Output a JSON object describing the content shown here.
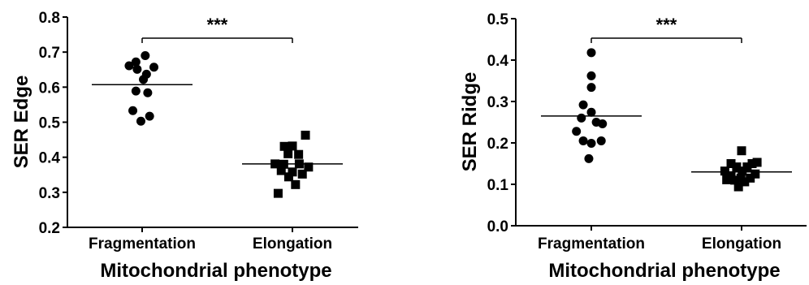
{
  "chart_data": [
    {
      "type": "scatter",
      "ylabel": "SER Edge",
      "xlabel": "Mitochondrial phenotype",
      "ylim": [
        0.2,
        0.8
      ],
      "yticks": [
        "0.2",
        "0.3",
        "0.4",
        "0.5",
        "0.6",
        "0.7",
        "0.8"
      ],
      "categories": [
        "Fragmentation",
        "Elongation"
      ],
      "significance": "***",
      "grid": false,
      "series": [
        {
          "category": "Fragmentation",
          "marker": "circle",
          "mean": 0.607,
          "points": [
            {
              "x": -0.21,
              "y": 0.661
            },
            {
              "x": -0.1,
              "y": 0.672
            },
            {
              "x": 0.05,
              "y": 0.69
            },
            {
              "x": -0.08,
              "y": 0.651
            },
            {
              "x": 0.19,
              "y": 0.657
            },
            {
              "x": 0.02,
              "y": 0.622
            },
            {
              "x": 0.07,
              "y": 0.637
            },
            {
              "x": -0.1,
              "y": 0.589
            },
            {
              "x": 0.09,
              "y": 0.584
            },
            {
              "x": -0.15,
              "y": 0.533
            },
            {
              "x": 0.12,
              "y": 0.517
            },
            {
              "x": -0.02,
              "y": 0.503
            }
          ]
        },
        {
          "category": "Elongation",
          "marker": "square",
          "mean": 0.381,
          "points": [
            {
              "x": 0.21,
              "y": 0.463
            },
            {
              "x": -0.13,
              "y": 0.431
            },
            {
              "x": 0.0,
              "y": 0.432
            },
            {
              "x": -0.07,
              "y": 0.41
            },
            {
              "x": 0.1,
              "y": 0.408
            },
            {
              "x": -0.28,
              "y": 0.381
            },
            {
              "x": -0.14,
              "y": 0.38
            },
            {
              "x": 0.11,
              "y": 0.381
            },
            {
              "x": 0.26,
              "y": 0.372
            },
            {
              "x": -0.18,
              "y": 0.362
            },
            {
              "x": 0.0,
              "y": 0.358
            },
            {
              "x": 0.16,
              "y": 0.352
            },
            {
              "x": -0.06,
              "y": 0.344
            },
            {
              "x": 0.05,
              "y": 0.322
            },
            {
              "x": -0.23,
              "y": 0.297
            }
          ]
        }
      ]
    },
    {
      "type": "scatter",
      "ylabel": "SER Ridge",
      "xlabel": "Mitochondrial phenotype",
      "ylim": [
        0.0,
        0.5
      ],
      "yticks": [
        "0.0",
        "0.1",
        "0.2",
        "0.3",
        "0.4",
        "0.5"
      ],
      "categories": [
        "Fragmentation",
        "Elongation"
      ],
      "significance": "***",
      "grid": false,
      "series": [
        {
          "category": "Fragmentation",
          "marker": "circle",
          "mean": 0.265,
          "points": [
            {
              "x": 0.0,
              "y": 0.418
            },
            {
              "x": 0.0,
              "y": 0.362
            },
            {
              "x": 0.0,
              "y": 0.334
            },
            {
              "x": -0.13,
              "y": 0.292
            },
            {
              "x": 0.0,
              "y": 0.274
            },
            {
              "x": -0.16,
              "y": 0.26
            },
            {
              "x": 0.18,
              "y": 0.246
            },
            {
              "x": 0.08,
              "y": 0.25
            },
            {
              "x": -0.24,
              "y": 0.228
            },
            {
              "x": -0.13,
              "y": 0.205
            },
            {
              "x": 0.16,
              "y": 0.205
            },
            {
              "x": 0.0,
              "y": 0.199
            },
            {
              "x": -0.04,
              "y": 0.162
            }
          ]
        },
        {
          "category": "Elongation",
          "marker": "square",
          "mean": 0.13,
          "points": [
            {
              "x": 0.0,
              "y": 0.181
            },
            {
              "x": -0.17,
              "y": 0.15
            },
            {
              "x": 0.17,
              "y": 0.15
            },
            {
              "x": 0.25,
              "y": 0.153
            },
            {
              "x": -0.08,
              "y": 0.142
            },
            {
              "x": 0.09,
              "y": 0.142
            },
            {
              "x": -0.27,
              "y": 0.132
            },
            {
              "x": 0.01,
              "y": 0.132
            },
            {
              "x": 0.22,
              "y": 0.125
            },
            {
              "x": -0.17,
              "y": 0.12
            },
            {
              "x": -0.01,
              "y": 0.115
            },
            {
              "x": 0.14,
              "y": 0.115
            },
            {
              "x": -0.11,
              "y": 0.11
            },
            {
              "x": 0.05,
              "y": 0.106
            },
            {
              "x": -0.24,
              "y": 0.111
            },
            {
              "x": -0.05,
              "y": 0.094
            }
          ]
        }
      ]
    }
  ]
}
